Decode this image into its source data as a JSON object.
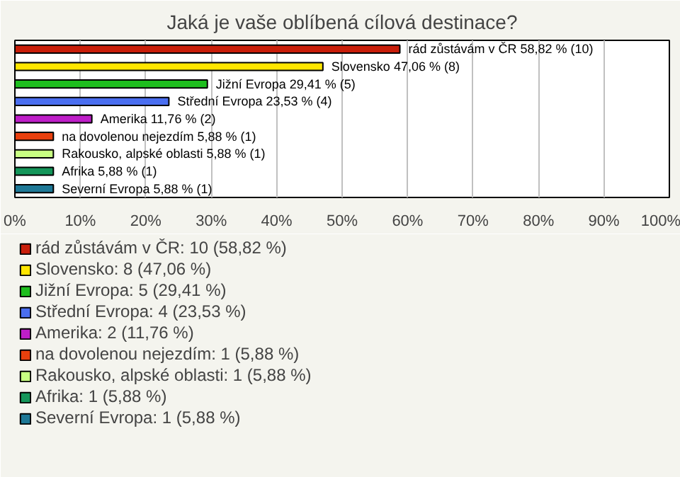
{
  "chart_data": {
    "type": "bar",
    "orientation": "horizontal",
    "title": "Jaká je vaše oblíbená cílová destinace?",
    "categories": [
      null,
      null,
      null,
      null,
      null,
      null,
      null,
      null,
      null
    ],
    "xlim": [
      0,
      100
    ],
    "xticks": [
      {
        "value": 0,
        "label": "0%"
      },
      {
        "value": 10,
        "label": "10%"
      },
      {
        "value": 20,
        "label": "20%"
      },
      {
        "value": 30,
        "label": "30%"
      },
      {
        "value": 40,
        "label": "40%"
      },
      {
        "value": 50,
        "label": "50%"
      },
      {
        "value": 60,
        "label": "60%"
      },
      {
        "value": 70,
        "label": "70%"
      },
      {
        "value": 80,
        "label": "80%"
      },
      {
        "value": 90,
        "label": "90%"
      },
      {
        "value": 100,
        "label": "100%"
      }
    ],
    "grid": "x",
    "legend": "bottom",
    "series": [
      {
        "name": "rád zůstávám v ČR: 10 (58,82 %)",
        "color": "#c81e0a",
        "values": [
          58.82,
          null,
          null,
          null,
          null,
          null,
          null,
          null,
          null
        ],
        "value_labels": [
          "rád zůstávám v ČR 58,82 % (10)",
          null,
          null,
          null,
          null,
          null,
          null,
          null,
          null
        ]
      },
      {
        "name": "Slovensko: 8 (47,06 %)",
        "color": "#ffe600",
        "values": [
          null,
          47.06,
          null,
          null,
          null,
          null,
          null,
          null,
          null
        ],
        "value_labels": [
          null,
          "Slovensko 47,06 % (8)",
          null,
          null,
          null,
          null,
          null,
          null,
          null
        ]
      },
      {
        "name": "Jižní Evropa: 5 (29,41 %)",
        "color": "#1ebe1e",
        "values": [
          null,
          null,
          29.41,
          null,
          null,
          null,
          null,
          null,
          null
        ],
        "value_labels": [
          null,
          null,
          "Jižní Evropa 29,41 % (5)",
          null,
          null,
          null,
          null,
          null,
          null
        ]
      },
      {
        "name": "Střední Evropa: 4 (23,53 %)",
        "color": "#4a6ef0",
        "values": [
          null,
          null,
          null,
          23.53,
          null,
          null,
          null,
          null,
          null
        ],
        "value_labels": [
          null,
          null,
          null,
          "Střední Evropa 23,53 % (4)",
          null,
          null,
          null,
          null,
          null
        ]
      },
      {
        "name": "Amerika: 2 (11,76 %)",
        "color": "#be1ec8",
        "values": [
          null,
          null,
          null,
          null,
          11.76,
          null,
          null,
          null,
          null
        ],
        "value_labels": [
          null,
          null,
          null,
          null,
          "Amerika 11,76 % (2)",
          null,
          null,
          null,
          null
        ]
      },
      {
        "name": "na dovolenou nejezdím: 1 (5,88 %)",
        "color": "#e8400e",
        "values": [
          null,
          null,
          null,
          null,
          null,
          5.88,
          null,
          null,
          null
        ],
        "value_labels": [
          null,
          null,
          null,
          null,
          null,
          "na dovolenou nejezdím 5,88 % (1)",
          null,
          null,
          null
        ]
      },
      {
        "name": "Rakousko, alpské oblasti: 1 (5,88 %)",
        "color": "#c8ff82",
        "values": [
          null,
          null,
          null,
          null,
          null,
          null,
          5.88,
          null,
          null
        ],
        "value_labels": [
          null,
          null,
          null,
          null,
          null,
          null,
          "Rakousko, alpské oblasti 5,88 % (1)",
          null,
          null
        ]
      },
      {
        "name": "Afrika: 1 (5,88 %)",
        "color": "#14965a",
        "values": [
          null,
          null,
          null,
          null,
          null,
          null,
          null,
          5.88,
          null
        ],
        "value_labels": [
          null,
          null,
          null,
          null,
          null,
          null,
          null,
          "Afrika 5,88 % (1)",
          null
        ]
      },
      {
        "name": "Severní Evropa: 1 (5,88 %)",
        "color": "#1e7896",
        "values": [
          null,
          null,
          null,
          null,
          null,
          null,
          null,
          null,
          5.88
        ],
        "value_labels": [
          null,
          null,
          null,
          null,
          null,
          null,
          null,
          null,
          "Severní Evropa 5,88 % (1)"
        ]
      }
    ]
  }
}
